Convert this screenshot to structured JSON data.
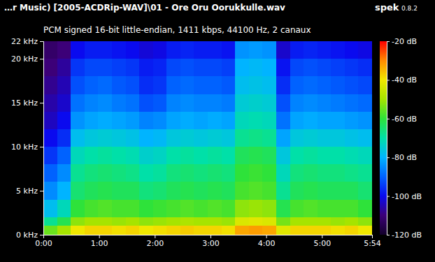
{
  "chart_data": {
    "type": "heatmap",
    "title": "…r Music) [2005-ACDRip-WAV]\\01 - Ore Oru Oorukkulle.wav",
    "annotations": [
      "spek",
      "0.8.2"
    ],
    "subtitle": "PCM signed 16-bit little-endian, 1411 kbps, 44100 Hz, 2 canaux",
    "x_edges": [
      0,
      14.75,
      29.5,
      44.25,
      59,
      73.75,
      88.5,
      103.25,
      118,
      132.75,
      147.5,
      162.25,
      177,
      191.75,
      206.5,
      221.25,
      236,
      250.75,
      265.5,
      280.25,
      295,
      309.75,
      324.5,
      339.25,
      354
    ],
    "y_edges": [
      0,
      1,
      2,
      4,
      6,
      8,
      10,
      12,
      14,
      16,
      18,
      20,
      22
    ],
    "values": [
      [
        -55,
        -50,
        -40,
        -38,
        -38,
        -39,
        -38,
        -40,
        -39,
        -38,
        -37,
        -38,
        -38,
        -39,
        -33,
        -32,
        -33,
        -42,
        -38,
        -38,
        -38,
        -39,
        -38,
        -40
      ],
      [
        -68,
        -62,
        -52,
        -50,
        -50,
        -51,
        -50,
        -52,
        -51,
        -50,
        -49,
        -50,
        -50,
        -51,
        -43,
        -42,
        -43,
        -54,
        -50,
        -50,
        -50,
        -51,
        -50,
        -52
      ],
      [
        -78,
        -72,
        -60,
        -58,
        -57,
        -58,
        -58,
        -60,
        -59,
        -58,
        -57,
        -58,
        -57,
        -58,
        -52,
        -51,
        -52,
        -62,
        -58,
        -57,
        -58,
        -58,
        -58,
        -60
      ],
      [
        -85,
        -80,
        -65,
        -63,
        -62,
        -63,
        -63,
        -66,
        -65,
        -63,
        -62,
        -63,
        -62,
        -63,
        -58,
        -57,
        -58,
        -68,
        -63,
        -62,
        -63,
        -63,
        -63,
        -65
      ],
      [
        -90,
        -85,
        -68,
        -66,
        -65,
        -66,
        -67,
        -70,
        -69,
        -66,
        -65,
        -66,
        -65,
        -66,
        -60,
        -59,
        -60,
        -72,
        -66,
        -65,
        -66,
        -66,
        -67,
        -68
      ],
      [
        -95,
        -90,
        -72,
        -70,
        -69,
        -70,
        -71,
        -74,
        -73,
        -70,
        -69,
        -70,
        -69,
        -70,
        -63,
        -62,
        -63,
        -76,
        -70,
        -69,
        -70,
        -70,
        -71,
        -72
      ],
      [
        -100,
        -96,
        -78,
        -76,
        -75,
        -76,
        -77,
        -80,
        -79,
        -76,
        -75,
        -76,
        -75,
        -76,
        -68,
        -67,
        -68,
        -82,
        -76,
        -75,
        -76,
        -76,
        -77,
        -78
      ],
      [
        -104,
        -100,
        -84,
        -82,
        -81,
        -82,
        -83,
        -86,
        -85,
        -82,
        -81,
        -82,
        -81,
        -82,
        -72,
        -71,
        -72,
        -88,
        -82,
        -81,
        -82,
        -82,
        -83,
        -84
      ],
      [
        -106,
        -103,
        -88,
        -86,
        -85,
        -87,
        -88,
        -92,
        -91,
        -86,
        -85,
        -86,
        -86,
        -87,
        -75,
        -74,
        -75,
        -92,
        -86,
        -85,
        -86,
        -87,
        -88,
        -89
      ],
      [
        -108,
        -105,
        -92,
        -90,
        -89,
        -91,
        -92,
        -96,
        -95,
        -90,
        -89,
        -90,
        -90,
        -91,
        -78,
        -77,
        -78,
        -96,
        -90,
        -89,
        -90,
        -91,
        -92,
        -93
      ],
      [
        -110,
        -107,
        -95,
        -93,
        -93,
        -94,
        -95,
        -98,
        -97,
        -93,
        -92,
        -93,
        -93,
        -94,
        -80,
        -79,
        -80,
        -99,
        -93,
        -92,
        -93,
        -94,
        -95,
        -96
      ],
      [
        -112,
        -110,
        -100,
        -98,
        -98,
        -99,
        -100,
        -102,
        -101,
        -98,
        -97,
        -98,
        -98,
        -99,
        -84,
        -83,
        -84,
        -103,
        -98,
        -97,
        -98,
        -99,
        -100,
        -101
      ]
    ],
    "xlim": [
      0,
      354
    ],
    "xticks": [
      {
        "value": 0,
        "label": "0:00"
      },
      {
        "value": 60,
        "label": "1:00"
      },
      {
        "value": 120,
        "label": "2:00"
      },
      {
        "value": 180,
        "label": "3:00"
      },
      {
        "value": 240,
        "label": "4:00"
      },
      {
        "value": 300,
        "label": "5:00"
      },
      {
        "value": 354,
        "label": "5:54"
      }
    ],
    "ylim": [
      0,
      22
    ],
    "yticks": [
      {
        "value": 0,
        "label": "0 kHz"
      },
      {
        "value": 5,
        "label": "5 kHz"
      },
      {
        "value": 10,
        "label": "10 kHz"
      },
      {
        "value": 15,
        "label": "15 kHz"
      },
      {
        "value": 20,
        "label": "20 kHz"
      },
      {
        "value": 22,
        "label": "22 kHz"
      }
    ],
    "color_range": [
      -120,
      -20
    ],
    "color_ticks": [
      {
        "value": -20,
        "label": "-20 dB"
      },
      {
        "value": -40,
        "label": "-40 dB"
      },
      {
        "value": -60,
        "label": "-60 dB"
      },
      {
        "value": -80,
        "label": "-80 dB"
      },
      {
        "value": -100,
        "label": "-100 dB"
      },
      {
        "value": -120,
        "label": "-120 dB"
      }
    ]
  }
}
